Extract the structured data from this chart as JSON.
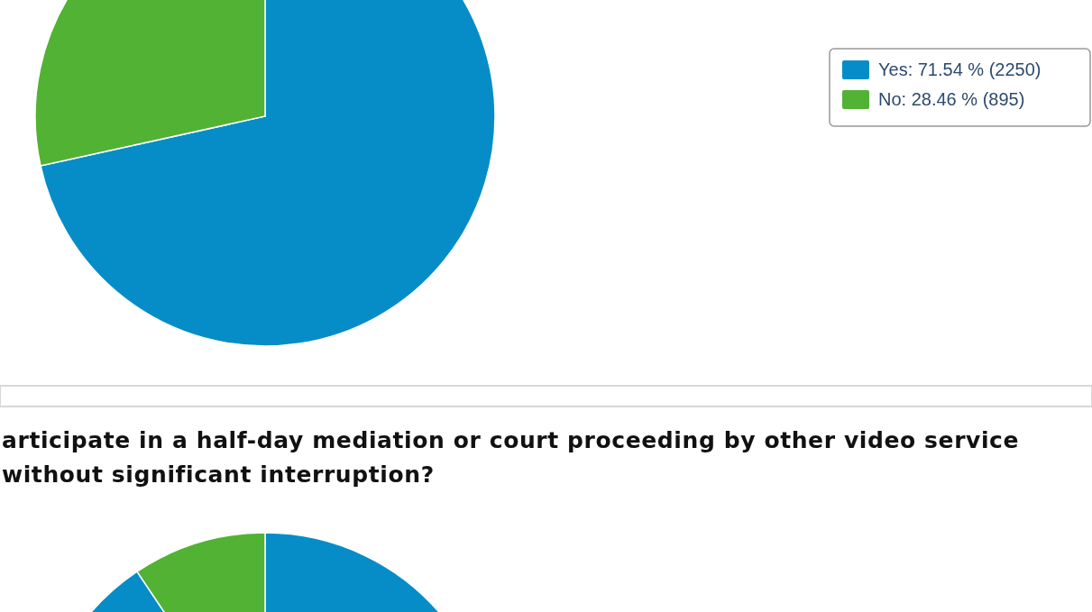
{
  "chart_data": [
    {
      "type": "pie",
      "categories": [
        "Yes",
        "No"
      ],
      "values": [
        2250,
        895
      ],
      "colors": [
        "#068dc7",
        "#52b234"
      ],
      "value_labels": [
        "71.54 % (2250)",
        "28.46 % (895)"
      ],
      "legend": "right"
    },
    {
      "type": "pie",
      "title": "articipate in a half-day mediation or court proceeding by other video service without significant interruption?",
      "categories": [
        null,
        null
      ],
      "values": [
        90.6,
        9.4
      ],
      "colors": [
        "#068dc7",
        "#52b234"
      ]
    }
  ]
}
